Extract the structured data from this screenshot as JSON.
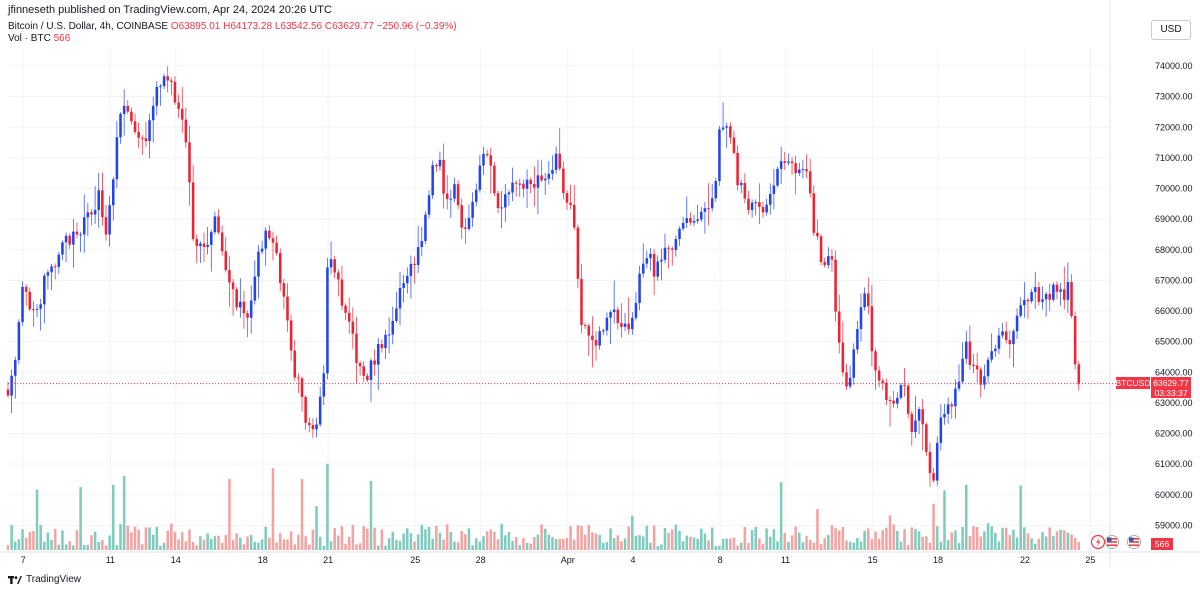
{
  "header": {
    "publisher_text": "jfinneseth published on TradingView.com, Apr 24, 2024 20:26 UTC"
  },
  "legend": {
    "symbol": "Bitcoin / U.S. Dollar, 4h, COINBASE",
    "ohlc": "O63895.01  H64173.28  L63542.56  C63629.77  −250.96 (−0.39%)",
    "volume_label": "Vol · BTC",
    "volume_value": "566"
  },
  "toolbar": {
    "currency_button": "USD"
  },
  "price_tag": {
    "symbol": "BTCUSD",
    "price": "63629.77",
    "countdown": "03:33:37"
  },
  "volume_tag": {
    "value": "566"
  },
  "footer": {
    "brand": "TradingView"
  },
  "colors": {
    "up": "#2244ee",
    "down": "#ee2233",
    "vol_up": "#7fcbbe",
    "vol_down": "#f4a3a3",
    "tag_bg": "#f23645",
    "grid": "#f0f3fa"
  },
  "chart_data": {
    "type": "candlestick",
    "title": "Bitcoin / U.S. Dollar, 4h, COINBASE",
    "ylim": [
      58000,
      75000
    ],
    "y_ticks": [
      "74000.00",
      "73000.00",
      "72000.00",
      "71000.00",
      "70000.00",
      "69000.00",
      "68000.00",
      "67000.00",
      "66000.00",
      "65000.00",
      "64000.00",
      "63000.00",
      "62000.00",
      "61000.00",
      "60000.00",
      "59000.00"
    ],
    "x_ticks": [
      {
        "label": "7",
        "day": 7
      },
      {
        "label": "11",
        "day": 11
      },
      {
        "label": "14",
        "day": 14
      },
      {
        "label": "18",
        "day": 18
      },
      {
        "label": "21",
        "day": 21
      },
      {
        "label": "25",
        "day": 25
      },
      {
        "label": "28",
        "day": 28
      },
      {
        "label": "Apr",
        "day": 32
      },
      {
        "label": "4",
        "day": 35
      },
      {
        "label": "8",
        "day": 39
      },
      {
        "label": "11",
        "day": 42
      },
      {
        "label": "15",
        "day": 46
      },
      {
        "label": "18",
        "day": 49
      },
      {
        "label": "22",
        "day": 53
      },
      {
        "label": "25",
        "day": 56
      }
    ],
    "x_range_days": [
      6.3,
      56.9
    ],
    "last_price": 63629.77,
    "anchors": [
      [
        6.3,
        63500
      ],
      [
        6.6,
        64000
      ],
      [
        7.0,
        66800
      ],
      [
        7.3,
        66000
      ],
      [
        7.6,
        65800
      ],
      [
        8.0,
        67000
      ],
      [
        8.5,
        67500
      ],
      [
        9.0,
        68400
      ],
      [
        9.5,
        68300
      ],
      [
        10.0,
        69200
      ],
      [
        10.5,
        69800
      ],
      [
        10.8,
        68500
      ],
      [
        11.3,
        71500
      ],
      [
        11.6,
        72800
      ],
      [
        12.0,
        72100
      ],
      [
        12.3,
        71800
      ],
      [
        12.6,
        71200
      ],
      [
        13.0,
        73000
      ],
      [
        13.3,
        73400
      ],
      [
        13.6,
        73600
      ],
      [
        14.0,
        72900
      ],
      [
        14.4,
        72000
      ],
      [
        14.8,
        68500
      ],
      [
        15.3,
        68000
      ],
      [
        15.8,
        69000
      ],
      [
        16.3,
        67200
      ],
      [
        16.8,
        66300
      ],
      [
        17.3,
        65800
      ],
      [
        17.7,
        67500
      ],
      [
        18.2,
        68500
      ],
      [
        18.6,
        67800
      ],
      [
        19.0,
        66500
      ],
      [
        19.3,
        64500
      ],
      [
        19.7,
        63500
      ],
      [
        20.1,
        62000
      ],
      [
        20.5,
        62500
      ],
      [
        20.8,
        64000
      ],
      [
        21.0,
        67800
      ],
      [
        21.3,
        67500
      ],
      [
        21.6,
        66200
      ],
      [
        22.0,
        65500
      ],
      [
        22.4,
        64000
      ],
      [
        22.8,
        63800
      ],
      [
        23.3,
        64800
      ],
      [
        23.7,
        65000
      ],
      [
        24.0,
        65800
      ],
      [
        24.5,
        67000
      ],
      [
        25.0,
        67700
      ],
      [
        25.5,
        69000
      ],
      [
        25.7,
        70500
      ],
      [
        26.1,
        71000
      ],
      [
        26.4,
        69500
      ],
      [
        26.8,
        70200
      ],
      [
        27.2,
        68600
      ],
      [
        27.7,
        69800
      ],
      [
        28.1,
        71200
      ],
      [
        28.5,
        70500
      ],
      [
        28.9,
        69300
      ],
      [
        29.3,
        69800
      ],
      [
        29.8,
        70200
      ],
      [
        30.3,
        70000
      ],
      [
        30.7,
        70300
      ],
      [
        31.1,
        70500
      ],
      [
        31.5,
        71200
      ],
      [
        31.8,
        69800
      ],
      [
        32.2,
        69600
      ],
      [
        32.6,
        65800
      ],
      [
        33.0,
        65300
      ],
      [
        33.3,
        65100
      ],
      [
        33.7,
        65500
      ],
      [
        34.0,
        66000
      ],
      [
        34.4,
        65600
      ],
      [
        34.8,
        65400
      ],
      [
        35.3,
        67000
      ],
      [
        35.7,
        68000
      ],
      [
        36.0,
        67200
      ],
      [
        36.4,
        67800
      ],
      [
        36.8,
        68200
      ],
      [
        37.2,
        68600
      ],
      [
        37.6,
        69000
      ],
      [
        38.0,
        69200
      ],
      [
        38.4,
        69200
      ],
      [
        38.7,
        69600
      ],
      [
        39.0,
        72300
      ],
      [
        39.4,
        71800
      ],
      [
        39.8,
        70300
      ],
      [
        40.2,
        69600
      ],
      [
        40.6,
        69300
      ],
      [
        41.0,
        69300
      ],
      [
        41.4,
        70000
      ],
      [
        41.8,
        70900
      ],
      [
        42.2,
        71000
      ],
      [
        42.6,
        70500
      ],
      [
        42.9,
        70900
      ],
      [
        43.3,
        68800
      ],
      [
        43.7,
        67500
      ],
      [
        44.1,
        67800
      ],
      [
        44.4,
        65000
      ],
      [
        44.8,
        63500
      ],
      [
        45.2,
        64800
      ],
      [
        45.6,
        66500
      ],
      [
        45.8,
        66000
      ],
      [
        46.1,
        64000
      ],
      [
        46.5,
        63500
      ],
      [
        47.0,
        62800
      ],
      [
        47.4,
        63500
      ],
      [
        47.8,
        62300
      ],
      [
        48.2,
        63200
      ],
      [
        48.5,
        61200
      ],
      [
        48.8,
        60500
      ],
      [
        49.1,
        62300
      ],
      [
        49.5,
        62800
      ],
      [
        49.9,
        63500
      ],
      [
        50.2,
        65000
      ],
      [
        50.6,
        64100
      ],
      [
        51.0,
        63800
      ],
      [
        51.4,
        64700
      ],
      [
        51.8,
        65200
      ],
      [
        52.2,
        64900
      ],
      [
        52.6,
        65800
      ],
      [
        53.0,
        66400
      ],
      [
        53.4,
        66700
      ],
      [
        53.8,
        66300
      ],
      [
        54.1,
        66500
      ],
      [
        54.4,
        66800
      ],
      [
        54.7,
        66500
      ],
      [
        55.0,
        66800
      ],
      [
        55.1,
        66200
      ],
      [
        55.3,
        64500
      ],
      [
        55.5,
        63900
      ],
      [
        55.6,
        63630
      ]
    ]
  }
}
